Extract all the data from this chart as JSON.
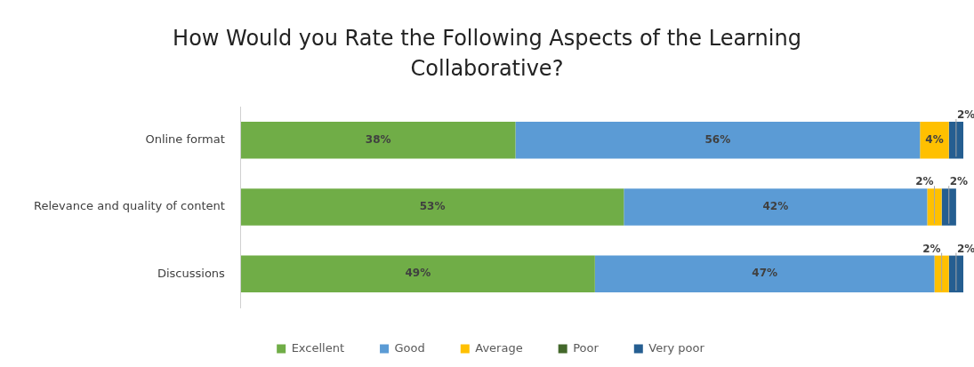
{
  "chart_data": {
    "type": "bar",
    "orientation": "horizontal",
    "stacked": true,
    "title": "How Would you Rate the Following Aspects of the Learning Collaborative?",
    "categories": [
      "Online format",
      "Relevance and quality of content",
      "Discussions"
    ],
    "series": [
      {
        "name": "Excellent",
        "color": "#70ad47",
        "values": [
          38,
          53,
          49
        ],
        "value_labels": [
          "38%",
          "53%",
          "49%"
        ]
      },
      {
        "name": "Good",
        "color": "#5b9bd5",
        "values": [
          56,
          42,
          47
        ],
        "value_labels": [
          "56%",
          "42%",
          "47%"
        ]
      },
      {
        "name": "Average",
        "color": "#ffc000",
        "values": [
          4,
          2,
          2
        ],
        "value_labels": [
          "4%",
          "2%",
          "2%"
        ]
      },
      {
        "name": "Poor",
        "color": "#43682b",
        "values": [
          0,
          0,
          0
        ],
        "value_labels": [
          null,
          null,
          null
        ]
      },
      {
        "name": "Very poor",
        "color": "#255e91",
        "values": [
          2,
          2,
          2
        ],
        "value_labels": [
          "2%",
          "2%",
          "2%"
        ]
      }
    ],
    "xlim": [
      0,
      100
    ],
    "tick_labels": "y",
    "legend": "bottom"
  }
}
